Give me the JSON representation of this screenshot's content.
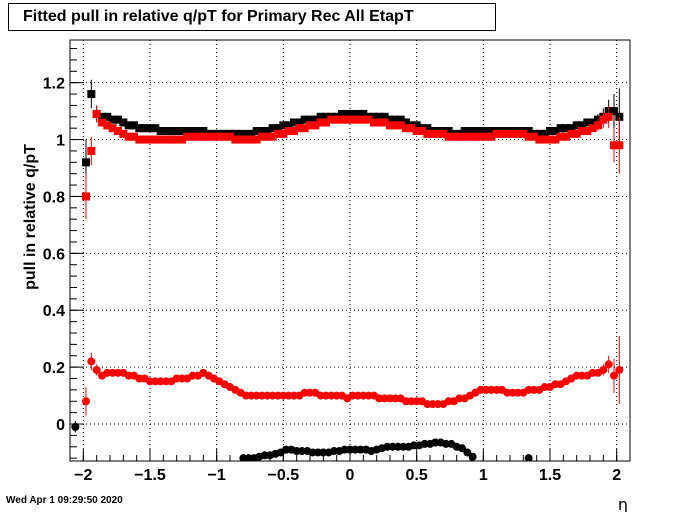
{
  "title": "Fitted pull in relative q/pT for Primary Rec All EtapT",
  "timestamp": "Wed Apr  1 09:29:50 2020",
  "chart_data": {
    "type": "scatter",
    "xlabel": "η",
    "ylabel": "pull in relative q/pT",
    "xlim": [
      -2.1,
      2.1
    ],
    "ylim": [
      -0.13,
      1.35
    ],
    "grid": true,
    "xticks": [
      -2,
      -1.5,
      -1,
      -0.5,
      0,
      0.5,
      1,
      1.5,
      2
    ],
    "xtick_labels": [
      "−2",
      "−1.5",
      "−1",
      "−0.5",
      "0",
      "0.5",
      "1",
      "1.5",
      "2"
    ],
    "yticks": [
      0,
      0.2,
      0.4,
      0.6,
      0.8,
      1,
      1.2
    ],
    "ytick_labels": [
      "0",
      "0.2",
      "0.4",
      "0.6",
      "0.8",
      "1",
      "1.2"
    ],
    "colors": {
      "black": "#000000",
      "red": "#ff0000"
    },
    "series": [
      {
        "color": "black",
        "marker": "square",
        "x": [
          -1.98,
          -1.94,
          -1.9,
          -1.86,
          -1.82,
          -1.78,
          -1.74,
          -1.7,
          -1.66,
          -1.62,
          -1.58,
          -1.54,
          -1.5,
          -1.46,
          -1.42,
          -1.38,
          -1.34,
          -1.3,
          -1.26,
          -1.22,
          -1.18,
          -1.14,
          -1.1,
          -1.06,
          -1.02,
          -0.98,
          -0.94,
          -0.9,
          -0.86,
          -0.82,
          -0.78,
          -0.74,
          -0.7,
          -0.66,
          -0.62,
          -0.58,
          -0.54,
          -0.5,
          -0.46,
          -0.42,
          -0.38,
          -0.34,
          -0.3,
          -0.26,
          -0.22,
          -0.18,
          -0.14,
          -0.1,
          -0.06,
          -0.02,
          0.02,
          0.06,
          0.1,
          0.14,
          0.18,
          0.22,
          0.26,
          0.3,
          0.34,
          0.38,
          0.42,
          0.46,
          0.5,
          0.54,
          0.58,
          0.62,
          0.66,
          0.7,
          0.74,
          0.78,
          0.82,
          0.86,
          0.9,
          0.94,
          0.98,
          1.02,
          1.06,
          1.1,
          1.14,
          1.18,
          1.22,
          1.26,
          1.3,
          1.34,
          1.38,
          1.42,
          1.46,
          1.5,
          1.54,
          1.58,
          1.62,
          1.66,
          1.7,
          1.74,
          1.78,
          1.82,
          1.86,
          1.9,
          1.94,
          1.98,
          2.02
        ],
        "y": [
          0.92,
          1.16,
          1.09,
          1.08,
          1.08,
          1.07,
          1.07,
          1.06,
          1.05,
          1.05,
          1.04,
          1.04,
          1.04,
          1.04,
          1.03,
          1.03,
          1.03,
          1.03,
          1.03,
          1.03,
          1.03,
          1.03,
          1.03,
          1.02,
          1.02,
          1.02,
          1.02,
          1.02,
          1.02,
          1.02,
          1.02,
          1.02,
          1.03,
          1.03,
          1.03,
          1.04,
          1.04,
          1.05,
          1.05,
          1.06,
          1.06,
          1.07,
          1.07,
          1.07,
          1.08,
          1.08,
          1.08,
          1.08,
          1.09,
          1.09,
          1.09,
          1.09,
          1.09,
          1.08,
          1.08,
          1.08,
          1.08,
          1.07,
          1.07,
          1.07,
          1.06,
          1.05,
          1.05,
          1.04,
          1.04,
          1.03,
          1.03,
          1.03,
          1.03,
          1.02,
          1.02,
          1.03,
          1.03,
          1.03,
          1.03,
          1.03,
          1.03,
          1.03,
          1.03,
          1.03,
          1.03,
          1.03,
          1.03,
          1.03,
          1.02,
          1.02,
          1.02,
          1.03,
          1.03,
          1.04,
          1.04,
          1.04,
          1.05,
          1.05,
          1.06,
          1.06,
          1.07,
          1.08,
          1.1,
          1.1,
          1.08
        ],
        "yerr": [
          0.08,
          0.05,
          0.03,
          0.01,
          0.01,
          0.01,
          0.01,
          0.01,
          0.01,
          0.01,
          0.01,
          0.01,
          0.01,
          0.01,
          0.01,
          0.01,
          0.01,
          0.01,
          0.01,
          0.01,
          0.01,
          0.01,
          0.01,
          0.01,
          0.01,
          0.01,
          0.01,
          0.01,
          0.01,
          0.01,
          0.01,
          0.01,
          0.01,
          0.01,
          0.01,
          0.01,
          0.01,
          0.01,
          0.01,
          0.01,
          0.01,
          0.01,
          0.01,
          0.01,
          0.01,
          0.01,
          0.01,
          0.01,
          0.01,
          0.01,
          0.01,
          0.01,
          0.01,
          0.01,
          0.01,
          0.01,
          0.01,
          0.01,
          0.01,
          0.01,
          0.01,
          0.01,
          0.01,
          0.01,
          0.01,
          0.01,
          0.01,
          0.01,
          0.01,
          0.01,
          0.01,
          0.01,
          0.01,
          0.01,
          0.01,
          0.01,
          0.01,
          0.01,
          0.01,
          0.01,
          0.01,
          0.01,
          0.01,
          0.01,
          0.01,
          0.01,
          0.01,
          0.01,
          0.01,
          0.01,
          0.01,
          0.01,
          0.01,
          0.01,
          0.01,
          0.01,
          0.02,
          0.03,
          0.04,
          0.06,
          0.1
        ]
      },
      {
        "color": "red",
        "marker": "square",
        "x": [
          -1.98,
          -1.94,
          -1.9,
          -1.86,
          -1.82,
          -1.78,
          -1.74,
          -1.7,
          -1.66,
          -1.62,
          -1.58,
          -1.54,
          -1.5,
          -1.46,
          -1.42,
          -1.38,
          -1.34,
          -1.3,
          -1.26,
          -1.22,
          -1.18,
          -1.14,
          -1.1,
          -1.06,
          -1.02,
          -0.98,
          -0.94,
          -0.9,
          -0.86,
          -0.82,
          -0.78,
          -0.74,
          -0.7,
          -0.66,
          -0.62,
          -0.58,
          -0.54,
          -0.5,
          -0.46,
          -0.42,
          -0.38,
          -0.34,
          -0.3,
          -0.26,
          -0.22,
          -0.18,
          -0.14,
          -0.1,
          -0.06,
          -0.02,
          0.02,
          0.06,
          0.1,
          0.14,
          0.18,
          0.22,
          0.26,
          0.3,
          0.34,
          0.38,
          0.42,
          0.46,
          0.5,
          0.54,
          0.58,
          0.62,
          0.66,
          0.7,
          0.74,
          0.78,
          0.82,
          0.86,
          0.9,
          0.94,
          0.98,
          1.02,
          1.06,
          1.1,
          1.14,
          1.18,
          1.22,
          1.26,
          1.3,
          1.34,
          1.38,
          1.42,
          1.46,
          1.5,
          1.54,
          1.58,
          1.62,
          1.66,
          1.7,
          1.74,
          1.78,
          1.82,
          1.86,
          1.9,
          1.94,
          1.98,
          2.02
        ],
        "y": [
          0.8,
          0.96,
          1.09,
          1.06,
          1.05,
          1.04,
          1.03,
          1.02,
          1.01,
          1.01,
          1.0,
          1.0,
          1.0,
          1.0,
          1.0,
          1.0,
          1.0,
          1.0,
          1.0,
          1.01,
          1.01,
          1.01,
          1.01,
          1.01,
          1.01,
          1.01,
          1.01,
          1.01,
          1.0,
          1.0,
          1.0,
          1.0,
          1.0,
          1.01,
          1.01,
          1.01,
          1.02,
          1.02,
          1.03,
          1.03,
          1.04,
          1.04,
          1.05,
          1.05,
          1.06,
          1.06,
          1.07,
          1.07,
          1.07,
          1.07,
          1.07,
          1.07,
          1.07,
          1.07,
          1.06,
          1.06,
          1.06,
          1.05,
          1.05,
          1.05,
          1.04,
          1.04,
          1.03,
          1.03,
          1.02,
          1.02,
          1.02,
          1.02,
          1.01,
          1.01,
          1.01,
          1.01,
          1.01,
          1.01,
          1.01,
          1.01,
          1.01,
          1.02,
          1.02,
          1.02,
          1.02,
          1.02,
          1.02,
          1.01,
          1.01,
          1.0,
          1.0,
          1.0,
          1.0,
          1.01,
          1.01,
          1.02,
          1.02,
          1.03,
          1.03,
          1.04,
          1.05,
          1.07,
          1.08,
          0.98,
          0.98
        ],
        "yerr": [
          0.08,
          0.05,
          0.03,
          0.01,
          0.01,
          0.01,
          0.01,
          0.01,
          0.01,
          0.01,
          0.01,
          0.01,
          0.01,
          0.01,
          0.01,
          0.01,
          0.01,
          0.01,
          0.01,
          0.01,
          0.01,
          0.01,
          0.01,
          0.01,
          0.01,
          0.01,
          0.01,
          0.01,
          0.01,
          0.01,
          0.01,
          0.01,
          0.01,
          0.01,
          0.01,
          0.01,
          0.01,
          0.01,
          0.01,
          0.01,
          0.01,
          0.01,
          0.01,
          0.01,
          0.01,
          0.01,
          0.01,
          0.01,
          0.01,
          0.01,
          0.01,
          0.01,
          0.01,
          0.01,
          0.01,
          0.01,
          0.01,
          0.01,
          0.01,
          0.01,
          0.01,
          0.01,
          0.01,
          0.01,
          0.01,
          0.01,
          0.01,
          0.01,
          0.01,
          0.01,
          0.01,
          0.01,
          0.01,
          0.01,
          0.01,
          0.01,
          0.01,
          0.01,
          0.01,
          0.01,
          0.01,
          0.01,
          0.01,
          0.01,
          0.01,
          0.01,
          0.01,
          0.01,
          0.01,
          0.01,
          0.01,
          0.01,
          0.01,
          0.01,
          0.01,
          0.01,
          0.02,
          0.03,
          0.04,
          0.06,
          0.1
        ]
      },
      {
        "color": "red",
        "marker": "circle",
        "x": [
          -1.98,
          -1.94,
          -1.9,
          -1.86,
          -1.82,
          -1.78,
          -1.74,
          -1.7,
          -1.66,
          -1.62,
          -1.58,
          -1.54,
          -1.5,
          -1.46,
          -1.42,
          -1.38,
          -1.34,
          -1.3,
          -1.26,
          -1.22,
          -1.18,
          -1.14,
          -1.1,
          -1.06,
          -1.02,
          -0.98,
          -0.94,
          -0.9,
          -0.86,
          -0.82,
          -0.78,
          -0.74,
          -0.7,
          -0.66,
          -0.62,
          -0.58,
          -0.54,
          -0.5,
          -0.46,
          -0.42,
          -0.38,
          -0.34,
          -0.3,
          -0.26,
          -0.22,
          -0.18,
          -0.14,
          -0.1,
          -0.06,
          -0.02,
          0.02,
          0.06,
          0.1,
          0.14,
          0.18,
          0.22,
          0.26,
          0.3,
          0.34,
          0.38,
          0.42,
          0.46,
          0.5,
          0.54,
          0.58,
          0.62,
          0.66,
          0.7,
          0.74,
          0.78,
          0.82,
          0.86,
          0.9,
          0.94,
          0.98,
          1.02,
          1.06,
          1.1,
          1.14,
          1.18,
          1.22,
          1.26,
          1.3,
          1.34,
          1.38,
          1.42,
          1.46,
          1.5,
          1.54,
          1.58,
          1.62,
          1.66,
          1.7,
          1.74,
          1.78,
          1.82,
          1.86,
          1.9,
          1.94,
          1.98,
          2.02
        ],
        "y": [
          0.08,
          0.22,
          0.19,
          0.17,
          0.18,
          0.18,
          0.18,
          0.18,
          0.17,
          0.17,
          0.16,
          0.16,
          0.15,
          0.15,
          0.15,
          0.15,
          0.15,
          0.16,
          0.16,
          0.16,
          0.17,
          0.17,
          0.18,
          0.17,
          0.16,
          0.15,
          0.14,
          0.13,
          0.12,
          0.11,
          0.1,
          0.1,
          0.1,
          0.1,
          0.1,
          0.1,
          0.1,
          0.1,
          0.1,
          0.1,
          0.1,
          0.11,
          0.11,
          0.11,
          0.1,
          0.1,
          0.1,
          0.1,
          0.1,
          0.09,
          0.1,
          0.1,
          0.1,
          0.1,
          0.1,
          0.09,
          0.09,
          0.09,
          0.09,
          0.09,
          0.08,
          0.08,
          0.08,
          0.08,
          0.07,
          0.07,
          0.07,
          0.07,
          0.08,
          0.08,
          0.09,
          0.09,
          0.1,
          0.11,
          0.12,
          0.12,
          0.12,
          0.12,
          0.12,
          0.11,
          0.11,
          0.11,
          0.11,
          0.12,
          0.12,
          0.12,
          0.13,
          0.13,
          0.14,
          0.14,
          0.15,
          0.16,
          0.17,
          0.17,
          0.17,
          0.18,
          0.18,
          0.19,
          0.21,
          0.17,
          0.19
        ],
        "yerr": [
          0.05,
          0.03,
          0.02,
          0.01,
          0.01,
          0.01,
          0.01,
          0.01,
          0.01,
          0.01,
          0.01,
          0.01,
          0.01,
          0.01,
          0.01,
          0.01,
          0.01,
          0.01,
          0.01,
          0.01,
          0.01,
          0.01,
          0.01,
          0.01,
          0.01,
          0.01,
          0.01,
          0.01,
          0.01,
          0.01,
          0.01,
          0.01,
          0.01,
          0.01,
          0.01,
          0.01,
          0.01,
          0.01,
          0.01,
          0.01,
          0.01,
          0.01,
          0.01,
          0.01,
          0.01,
          0.01,
          0.01,
          0.01,
          0.01,
          0.01,
          0.01,
          0.01,
          0.01,
          0.01,
          0.01,
          0.01,
          0.01,
          0.01,
          0.01,
          0.01,
          0.01,
          0.01,
          0.01,
          0.01,
          0.01,
          0.01,
          0.01,
          0.01,
          0.01,
          0.01,
          0.01,
          0.01,
          0.01,
          0.01,
          0.01,
          0.01,
          0.01,
          0.01,
          0.01,
          0.01,
          0.01,
          0.01,
          0.01,
          0.01,
          0.01,
          0.01,
          0.01,
          0.01,
          0.01,
          0.01,
          0.01,
          0.01,
          0.01,
          0.01,
          0.01,
          0.01,
          0.01,
          0.02,
          0.03,
          0.06,
          0.12
        ]
      },
      {
        "color": "black",
        "marker": "circle",
        "x": [
          -2.06,
          -0.8,
          -0.76,
          -0.72,
          -0.68,
          -0.64,
          -0.6,
          -0.56,
          -0.52,
          -0.48,
          -0.44,
          -0.4,
          -0.36,
          -0.32,
          -0.28,
          -0.24,
          -0.2,
          -0.16,
          -0.12,
          -0.08,
          -0.04,
          0.0,
          0.04,
          0.08,
          0.12,
          0.16,
          0.2,
          0.24,
          0.28,
          0.32,
          0.36,
          0.4,
          0.44,
          0.48,
          0.52,
          0.56,
          0.6,
          0.64,
          0.68,
          0.72,
          0.76,
          0.8,
          0.84,
          0.88,
          0.92,
          1.34
        ],
        "y": [
          -0.01,
          -0.12,
          -0.12,
          -0.12,
          -0.115,
          -0.11,
          -0.11,
          -0.105,
          -0.1,
          -0.09,
          -0.09,
          -0.095,
          -0.095,
          -0.095,
          -0.1,
          -0.1,
          -0.1,
          -0.1,
          -0.095,
          -0.095,
          -0.09,
          -0.09,
          -0.09,
          -0.09,
          -0.09,
          -0.095,
          -0.09,
          -0.085,
          -0.08,
          -0.08,
          -0.08,
          -0.08,
          -0.08,
          -0.075,
          -0.075,
          -0.07,
          -0.07,
          -0.065,
          -0.065,
          -0.07,
          -0.07,
          -0.08,
          -0.085,
          -0.1,
          -0.115,
          -0.12
        ],
        "yerr": [
          0.02,
          0.01,
          0.01,
          0.01,
          0.01,
          0.01,
          0.01,
          0.01,
          0.01,
          0.01,
          0.01,
          0.01,
          0.01,
          0.01,
          0.01,
          0.01,
          0.01,
          0.01,
          0.01,
          0.01,
          0.01,
          0.01,
          0.01,
          0.01,
          0.01,
          0.01,
          0.01,
          0.01,
          0.01,
          0.01,
          0.01,
          0.01,
          0.01,
          0.01,
          0.01,
          0.01,
          0.01,
          0.01,
          0.01,
          0.01,
          0.01,
          0.01,
          0.01,
          0.01,
          0.01,
          0.01
        ]
      }
    ]
  }
}
